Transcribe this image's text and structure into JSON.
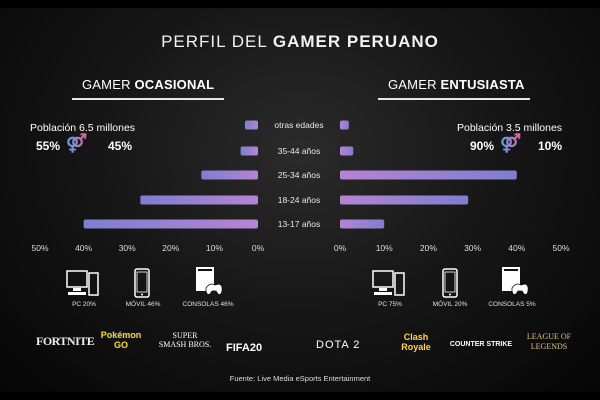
{
  "title": {
    "normal": "PERFIL DEL ",
    "bold": "GAMER PERUANO"
  },
  "left": {
    "heading_normal": "GAMER ",
    "heading_bold": "OCASIONAL",
    "population": "Población 6.5 millones",
    "male_pct": "55%",
    "female_pct": "45%",
    "devices": [
      "PC 20%",
      "MÓVIL 46%",
      "CONSOLAS 46%"
    ]
  },
  "right": {
    "heading_normal": "GAMER ",
    "heading_bold": "ENTUSIASTA",
    "population": "Población 3.5 millones",
    "male_pct": "90%",
    "female_pct": "10%",
    "devices": [
      "PC 75%",
      "MÓVIL 20%",
      "CONSOLAS 5%"
    ]
  },
  "gender_symbol": "⚤",
  "colors": {
    "bar_start": "#7d7fcf",
    "bar_end": "#b783d4",
    "male": "#4aa6e8",
    "female": "#ea5f9e"
  },
  "chart_data": [
    {
      "type": "bar",
      "orientation": "horizontal",
      "subtitle": "GAMER OCASIONAL",
      "categories": [
        "otras edades",
        "35-44 años",
        "25-34 años",
        "18-24 años",
        "13-17 años"
      ],
      "values": [
        3,
        4,
        13,
        27,
        40
      ],
      "xlim": [
        0,
        50
      ],
      "x_direction": "right-to-left",
      "ticks": [
        "50%",
        "40%",
        "30%",
        "20%",
        "10%",
        "0%"
      ]
    },
    {
      "type": "bar",
      "orientation": "horizontal",
      "subtitle": "GAMER ENTUSIASTA",
      "categories": [
        "otras edades",
        "35-44 años",
        "25-34 años",
        "18-24 años",
        "13-17 años"
      ],
      "values": [
        2,
        3,
        40,
        29,
        10
      ],
      "xlim": [
        0,
        50
      ],
      "x_direction": "left-to-right",
      "ticks": [
        "0%",
        "10%",
        "20%",
        "30%",
        "40%",
        "50%"
      ]
    }
  ],
  "logos_left": [
    "FORTNITE",
    "Pokémon GO",
    "SUPER SMASH BROS.",
    "FIFA20"
  ],
  "logos_right": [
    "DOTA 2",
    "Clash Royale",
    "COUNTER STRIKE",
    "LEAGUE OF LEGENDS"
  ],
  "source": "Fuente: Live Media eSports Entertainment"
}
